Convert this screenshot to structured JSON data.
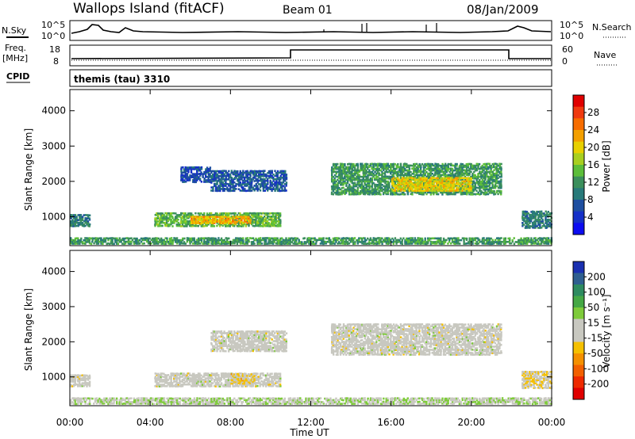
{
  "header": {
    "title": "Wallops Island (fitACF)",
    "beam": "Beam 01",
    "date": "08/Jan/2009"
  },
  "top_panels": {
    "nsky_label": "N.Sky",
    "nsearch_label": "N.Search",
    "exp_hi": "10^5",
    "exp_lo": "10^0",
    "freq_label_1": "Freq.",
    "freq_label_2": "[MHz]",
    "freq_ticks": [
      "18",
      "8"
    ],
    "nave_label": "Nave",
    "nave_ticks": [
      "60",
      "0"
    ],
    "cpid_label": "CPID",
    "cpid_text": "themis (tau) 3310"
  },
  "axes": {
    "ylabel": "Slant Range [km]",
    "yticks": [
      "4000",
      "3000",
      "2000",
      "1000"
    ],
    "xticks": [
      "00:00",
      "04:00",
      "08:00",
      "12:00",
      "16:00",
      "20:00",
      "00:00"
    ],
    "xlabel": "Time UT"
  },
  "power_colorbar": {
    "label": "Power [dB]",
    "ticks": [
      "28",
      "24",
      "20",
      "16",
      "12",
      "8",
      "4"
    ],
    "colors": [
      "#e00000",
      "#f03a10",
      "#f76d00",
      "#f39f00",
      "#e8d000",
      "#a8cf20",
      "#5cbe3a",
      "#3b8f5c",
      "#287a7a",
      "#1e4fa0",
      "#1530c8",
      "#0c0cf0"
    ]
  },
  "velocity_colorbar": {
    "label": "Velocity [m s⁻¹]",
    "ticks": [
      "200",
      "100",
      "50",
      "15",
      "-15",
      "-50",
      "-100",
      "-200"
    ],
    "colors": [
      "#1a30b0",
      "#2f5f90",
      "#2e8b60",
      "#45a845",
      "#7ecb3a",
      "#c8c8c0",
      "#c8c8c0",
      "#f5c000",
      "#f49000",
      "#f26000",
      "#ee2a00",
      "#e00000"
    ]
  },
  "chart_data": [
    {
      "type": "heatmap",
      "title": "Power",
      "x_range_hours": [
        0,
        24
      ],
      "y_range_km": [
        180,
        4600
      ],
      "colorbar_range_db": [
        0,
        32
      ],
      "regions": [
        {
          "t": [
            0,
            1.0
          ],
          "r": [
            700,
            1050
          ],
          "value": 10
        },
        {
          "t": [
            4.2,
            10.5
          ],
          "r": [
            700,
            1100
          ],
          "value": 14
        },
        {
          "t": [
            6.0,
            9.0
          ],
          "r": [
            780,
            1000
          ],
          "value": 22
        },
        {
          "t": [
            5.5,
            7.0
          ],
          "r": [
            1950,
            2400
          ],
          "value": 6
        },
        {
          "t": [
            7.0,
            10.8
          ],
          "r": [
            1700,
            2300
          ],
          "value": 7
        },
        {
          "t": [
            13.0,
            21.5
          ],
          "r": [
            1600,
            2500
          ],
          "value": 12
        },
        {
          "t": [
            16.0,
            20.0
          ],
          "r": [
            1700,
            2100
          ],
          "value": 20
        },
        {
          "t": [
            22.5,
            24.0
          ],
          "r": [
            650,
            1150
          ],
          "value": 10
        },
        {
          "t": [
            0,
            24
          ],
          "r": [
            200,
            400
          ],
          "value": 12
        }
      ]
    },
    {
      "type": "heatmap",
      "title": "Velocity",
      "x_range_hours": [
        0,
        24
      ],
      "y_range_km": [
        180,
        4600
      ],
      "colorbar_range_ms": [
        -250,
        250
      ],
      "regions": [
        {
          "t": [
            0,
            1.0
          ],
          "r": [
            700,
            1050
          ],
          "value": 0
        },
        {
          "t": [
            4.2,
            10.5
          ],
          "r": [
            700,
            1100
          ],
          "value": 0
        },
        {
          "t": [
            8.0,
            9.2
          ],
          "r": [
            780,
            1080
          ],
          "value": -40
        },
        {
          "t": [
            7.0,
            10.8
          ],
          "r": [
            1700,
            2300
          ],
          "value": 0
        },
        {
          "t": [
            13.0,
            21.5
          ],
          "r": [
            1600,
            2500
          ],
          "value": 0
        },
        {
          "t": [
            22.5,
            24.0
          ],
          "r": [
            650,
            1150
          ],
          "value": -30
        },
        {
          "t": [
            0,
            24
          ],
          "r": [
            200,
            400
          ],
          "value": 30
        }
      ]
    }
  ]
}
